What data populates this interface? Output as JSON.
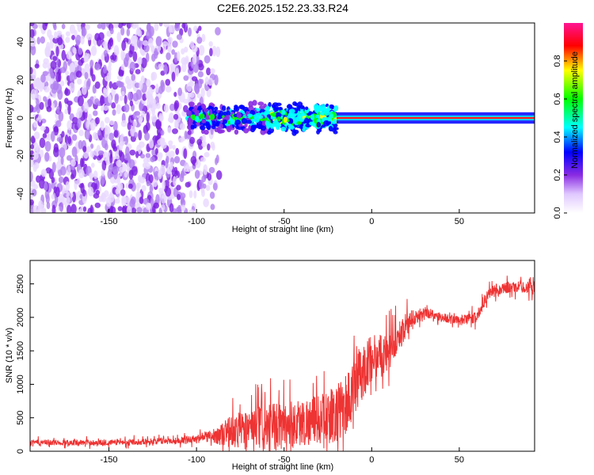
{
  "page_title": "C2E6.2025.152.23.33.R24",
  "chart_data": [
    {
      "type": "heatmap",
      "title": "C2E6.2025.152.23.33.R24",
      "xlabel": "Height of straight line (km)",
      "ylabel": "Frequency (Hz)",
      "xlim": [
        -195,
        93
      ],
      "ylim": [
        -50,
        50
      ],
      "xticks": [
        -150,
        -100,
        -50,
        0,
        50
      ],
      "yticks": [
        -40,
        -20,
        0,
        20,
        40
      ],
      "colorbar": {
        "label": "Normalized spectral amplitude",
        "range": [
          0,
          1
        ],
        "ticks": [
          0.0,
          0.2,
          0.4,
          0.6,
          0.8
        ],
        "tick_labels": [
          "0.0",
          "0.2",
          "0.4",
          "0.6",
          "0.8"
        ],
        "colormap": [
          "#ffffff",
          "#e0c8ff",
          "#8a2be2",
          "#0000ff",
          "#00ffff",
          "#00ff00",
          "#ffff00",
          "#ff0000",
          "#ff1493"
        ]
      },
      "regions": [
        {
          "x_range": [
            -195,
            -105
          ],
          "description_values": {
            "freq_range": [
              -50,
              50
            ],
            "amplitude": 0.1
          }
        },
        {
          "x_range": [
            -105,
            -20
          ],
          "description_values": {
            "freq_range": [
              -6,
              6
            ],
            "amplitude": 0.3
          }
        },
        {
          "x_range": [
            -20,
            93
          ],
          "description_values": {
            "freq_center": 0,
            "amplitude": 0.85
          }
        }
      ]
    },
    {
      "type": "line",
      "xlabel": "Height of straight line (km)",
      "ylabel": "SNR (10 * v/v)",
      "xlim": [
        -195,
        93
      ],
      "ylim": [
        0,
        2850
      ],
      "xticks": [
        -150,
        -100,
        -50,
        0,
        50
      ],
      "yticks": [
        0,
        500,
        1000,
        1500,
        2000,
        2500
      ],
      "color": "#ee3333",
      "envelope": {
        "x": [
          -195,
          -150,
          -110,
          -100,
          -90,
          -80,
          -70,
          -60,
          -50,
          -40,
          -30,
          -20,
          -15,
          -10,
          -5,
          0,
          10,
          20,
          30,
          40,
          50,
          60,
          65,
          70,
          80,
          93
        ],
        "baseline": [
          130,
          130,
          160,
          190,
          230,
          280,
          350,
          330,
          400,
          420,
          480,
          550,
          700,
          900,
          1200,
          1400,
          1500,
          1900,
          2080,
          2000,
          1950,
          2000,
          2300,
          2420,
          2450,
          2450
        ],
        "spread": [
          60,
          60,
          70,
          80,
          150,
          350,
          420,
          500,
          520,
          520,
          520,
          600,
          700,
          650,
          600,
          500,
          400,
          250,
          120,
          100,
          100,
          120,
          150,
          120,
          120,
          130
        ]
      }
    }
  ]
}
